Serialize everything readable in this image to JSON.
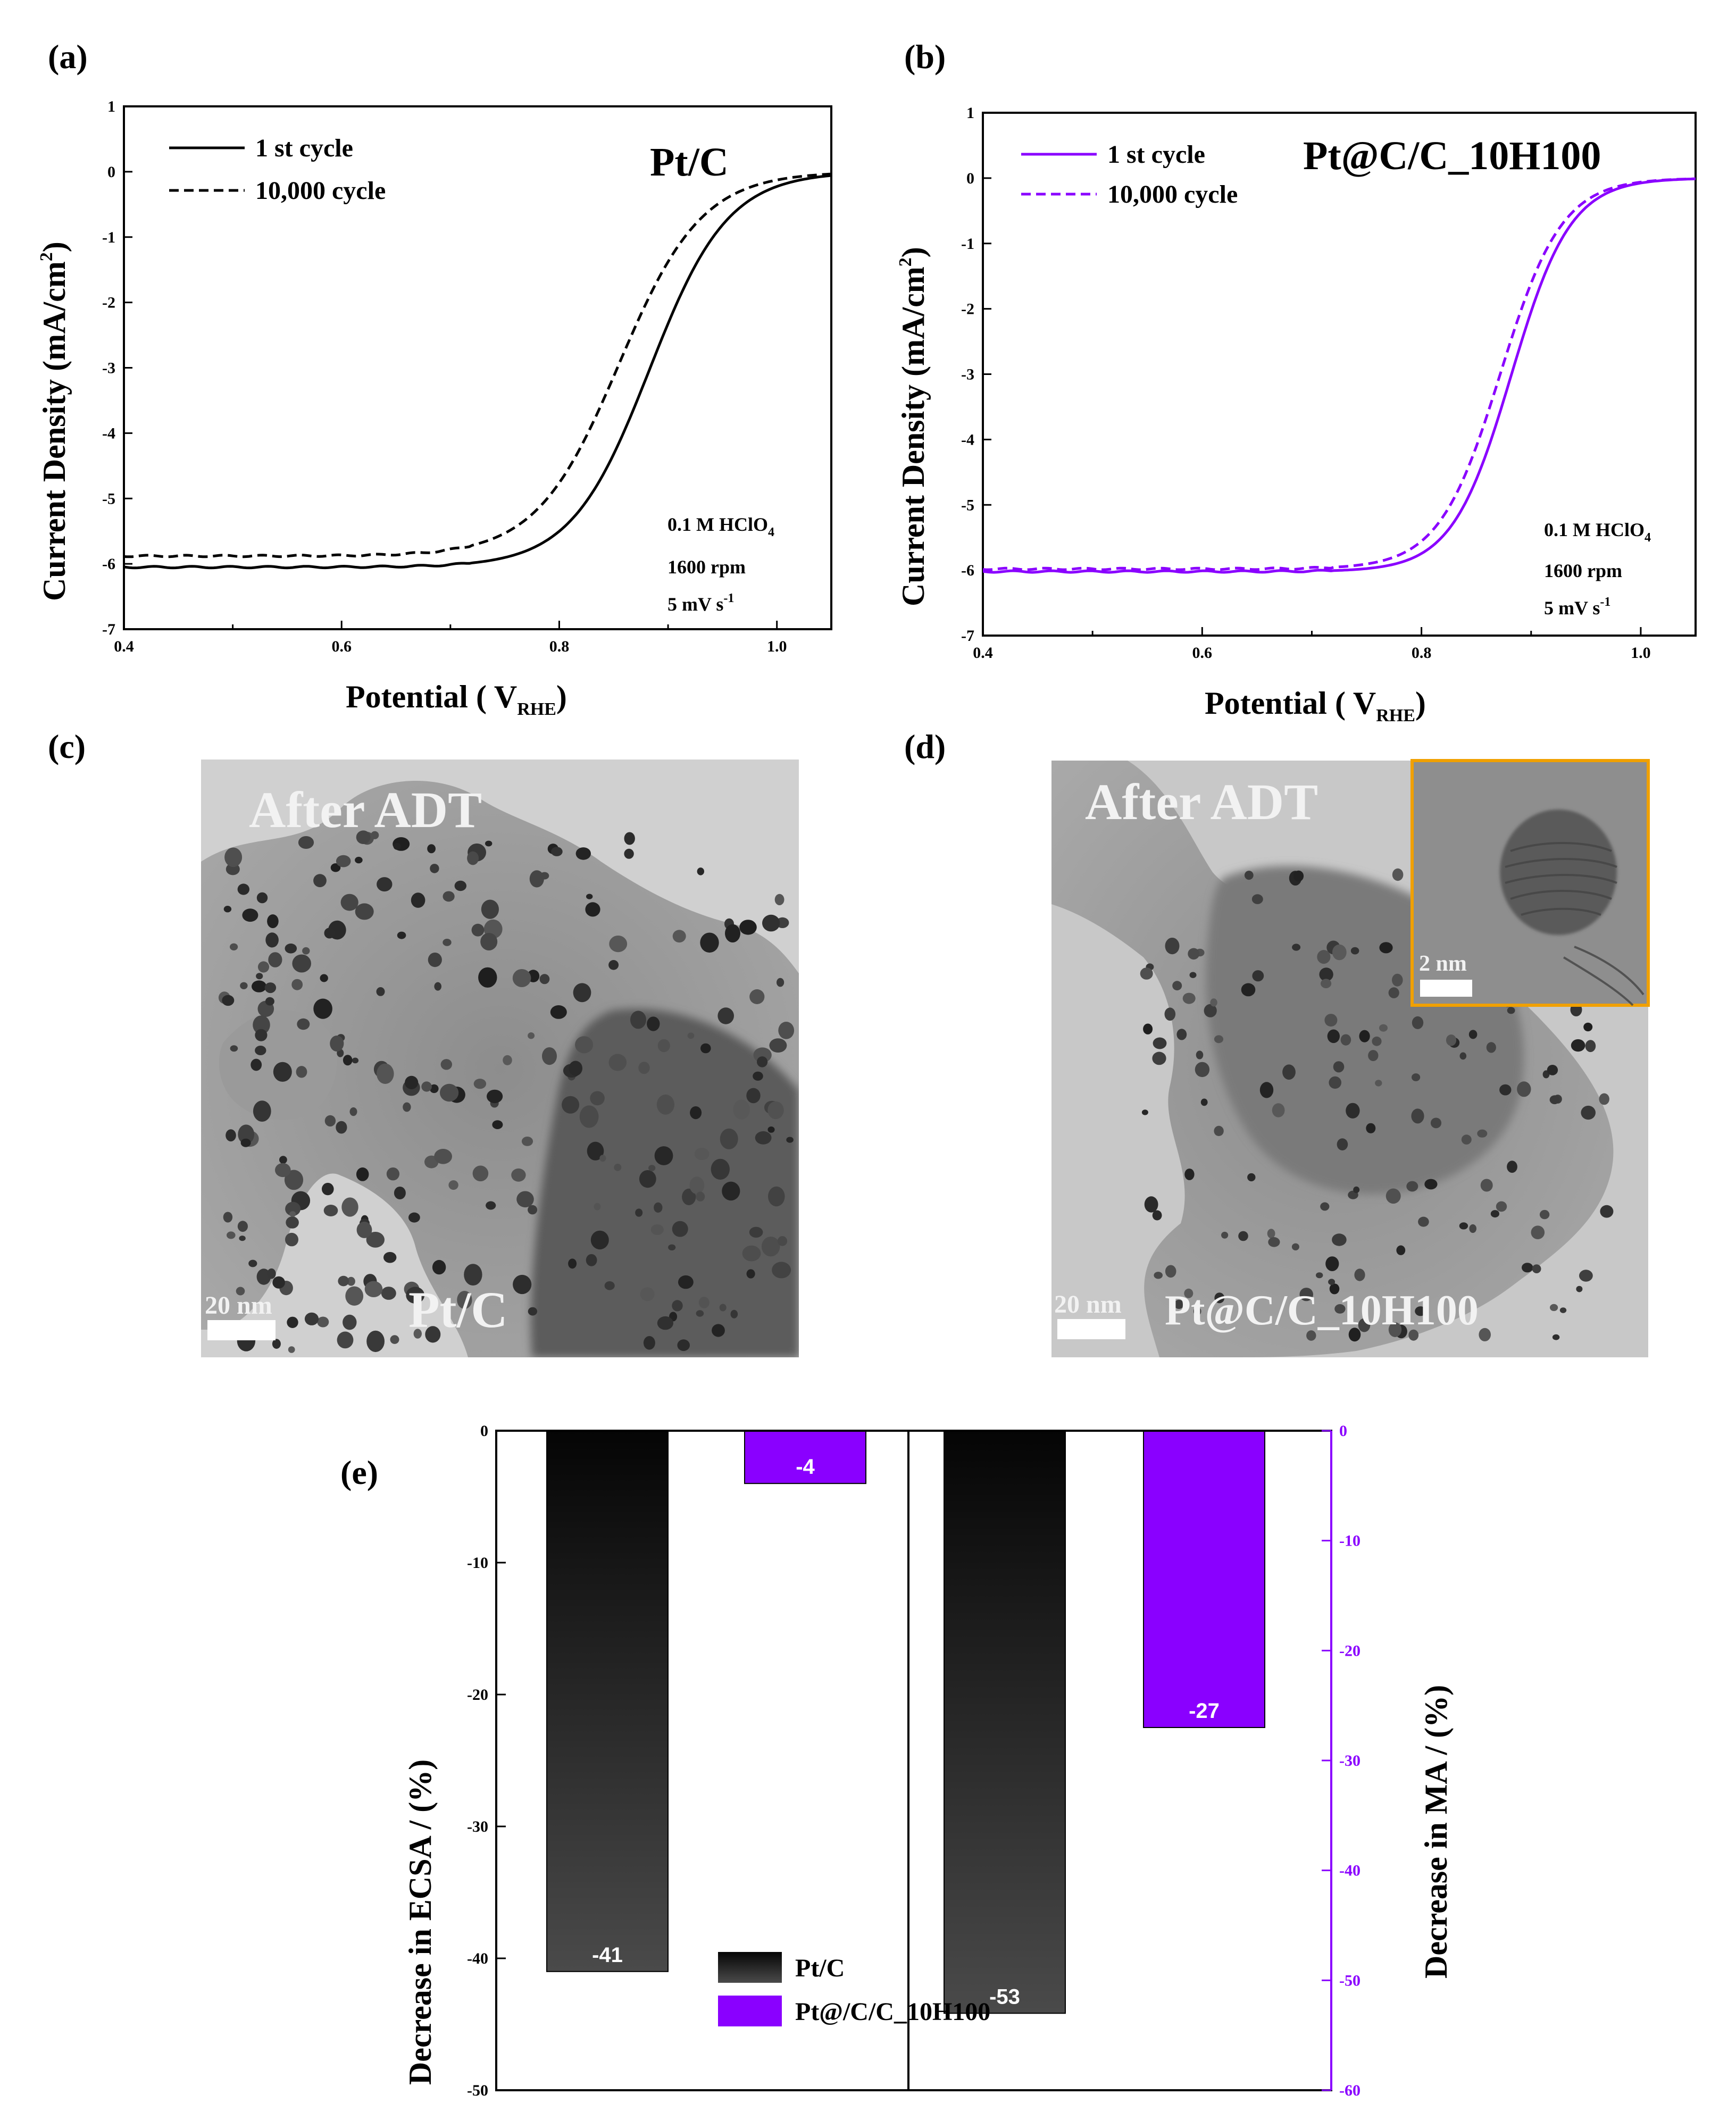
{
  "panels": {
    "a": "(a)",
    "b": "(b)",
    "c": "(c)",
    "d": "(d)",
    "e": "(e)"
  },
  "chart_data": [
    {
      "id": "a",
      "type": "line",
      "title": "Pt/C",
      "xlabel_main": "Potential ( V",
      "xlabel_sub": "RHE",
      "xlabel_end": ")",
      "ylabel": "Current Density (mA/cm",
      "ylabel_sup": "2",
      "ylabel_end": ")",
      "xlim": [
        0.4,
        1.05
      ],
      "ylim": [
        -7,
        1
      ],
      "xticks": [
        "0.4",
        "0.6",
        "0.8",
        "1.0"
      ],
      "xtick_values": [
        0.4,
        0.6,
        0.8,
        1.0
      ],
      "yticks": [
        "1",
        "0",
        "-1",
        "-2",
        "-3",
        "-4",
        "-5",
        "-6",
        "-7"
      ],
      "ytick_values": [
        1,
        0,
        -1,
        -2,
        -3,
        -4,
        -5,
        -6,
        -7
      ],
      "color": "#000000",
      "conditions": [
        "0.1 M HClO",
        "1600 rpm",
        "5 mV s"
      ],
      "cond_sub": "4",
      "cond_sup": "-1",
      "series": [
        {
          "name": "1 st cycle",
          "style": "solid",
          "jl": -6.05,
          "e_half": 0.883,
          "k": 0.036
        },
        {
          "name": "10,000 cycle",
          "style": "dashed",
          "jl": -5.88,
          "e_half": 0.855,
          "k": 0.038
        }
      ]
    },
    {
      "id": "b",
      "type": "line",
      "title": "Pt@C/C_10H100",
      "xlabel_main": "Potential ( V",
      "xlabel_sub": "RHE",
      "xlabel_end": ")",
      "ylabel": "Current Density (mA/cm",
      "ylabel_sup": "2",
      "ylabel_end": ")",
      "xlim": [
        0.4,
        1.05
      ],
      "ylim": [
        -7,
        1
      ],
      "xticks": [
        "0.4",
        "0.6",
        "0.8",
        "1.0"
      ],
      "xtick_values": [
        0.4,
        0.6,
        0.8,
        1.0
      ],
      "yticks": [
        "1",
        "0",
        "-1",
        "-2",
        "-3",
        "-4",
        "-5",
        "-6",
        "-7"
      ],
      "ytick_values": [
        1,
        0,
        -1,
        -2,
        -3,
        -4,
        -5,
        -6,
        -7
      ],
      "color": "#8a00ff",
      "conditions": [
        "0.1 M HClO",
        "1600 rpm",
        "5 mV s"
      ],
      "cond_sub": "4",
      "cond_sup": "-1",
      "series": [
        {
          "name": "1 st cycle",
          "style": "solid",
          "jl": -6.02,
          "e_half": 0.882,
          "k": 0.027
        },
        {
          "name": "10,000 cycle",
          "style": "dashed",
          "jl": -5.98,
          "e_half": 0.872,
          "k": 0.028
        }
      ]
    },
    {
      "id": "e",
      "type": "bar",
      "ylabel_left": "Decrease in ECSA / (%)",
      "ylabel_right": "Decrease in MA / (%)",
      "ylim_left": [
        -50,
        0
      ],
      "ylim_right": [
        -60,
        0
      ],
      "yticks_left": [
        "0",
        "-10",
        "-20",
        "-30",
        "-40",
        "-50"
      ],
      "ytick_values_left": [
        0,
        -10,
        -20,
        -30,
        -40,
        -50
      ],
      "yticks_right": [
        "0",
        "-10",
        "-20",
        "-30",
        "-40",
        "-50",
        "-60"
      ],
      "ytick_values_right": [
        0,
        -10,
        -20,
        -30,
        -40,
        -50,
        -60
      ],
      "groups": [
        {
          "metric": "ECSA",
          "axis": "left",
          "bars": [
            {
              "series": "Pt/C",
              "value": -41,
              "label": "-41"
            },
            {
              "series": "Pt@/C/C_10H100",
              "value": -4,
              "label": "-4"
            }
          ]
        },
        {
          "metric": "MA",
          "axis": "right",
          "bars": [
            {
              "series": "Pt/C",
              "value": -53,
              "label": "-53"
            },
            {
              "series": "Pt@/C/C_10H100",
              "value": -27,
              "label": "-27"
            }
          ]
        }
      ],
      "legend": [
        {
          "name": "Pt/C",
          "color": "#222222"
        },
        {
          "name": "Pt@/C/C_10H100",
          "color": "#8a00ff"
        }
      ],
      "legend_position": "bottom-center"
    }
  ],
  "tem": {
    "c": {
      "header": "After ADT",
      "sample": "Pt/C",
      "scale": "20 nm"
    },
    "d": {
      "header": "After ADT",
      "sample": "Pt@C/C_10H100",
      "scale": "20 nm",
      "inset_scale": "2 nm",
      "inset_border": "#f0a000"
    }
  },
  "colors": {
    "purple": "#8a00ff",
    "black": "#000000"
  }
}
